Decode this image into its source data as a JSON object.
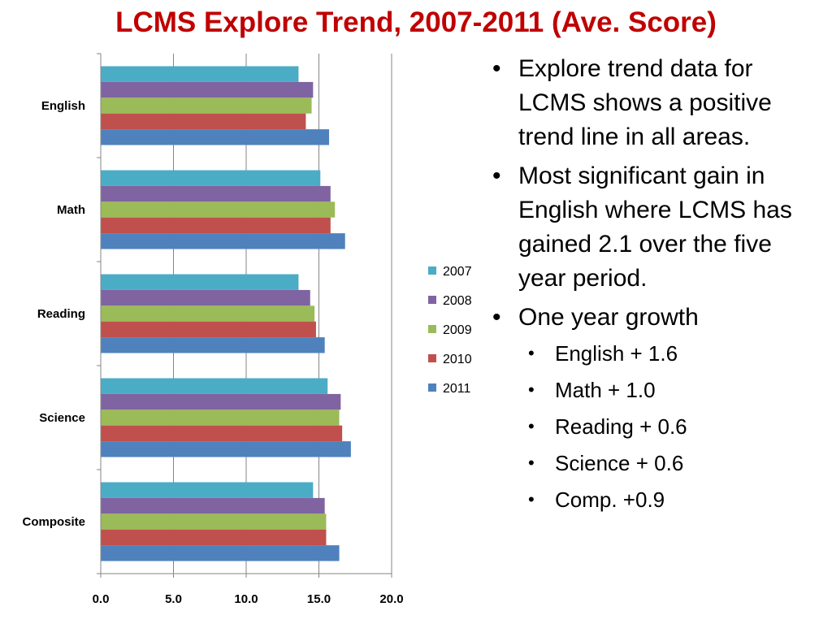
{
  "slide": {
    "title": "LCMS Explore Trend, 2007-2011 (Ave. Score)"
  },
  "bullets": [
    {
      "level": 1,
      "text": "Explore trend data for LCMS shows a positive trend line in all areas."
    },
    {
      "level": 1,
      "text": "Most significant gain in English where LCMS has gained 2.1 over the five year period."
    },
    {
      "level": 1,
      "text": "One year growth"
    },
    {
      "level": 2,
      "text": "English + 1.6"
    },
    {
      "level": 2,
      "text": "Math + 1.0"
    },
    {
      "level": 2,
      "text": "Reading + 0.6"
    },
    {
      "level": 2,
      "text": "Science + 0.6"
    },
    {
      "level": 2,
      "text": "Comp. +0.9"
    }
  ],
  "chart_data": {
    "type": "bar",
    "orientation": "horizontal",
    "title": "",
    "xlabel": "",
    "ylabel": "",
    "categories": [
      "English",
      "Math",
      "Reading",
      "Science",
      "Composite"
    ],
    "series": [
      {
        "name": "2007",
        "color": "#4bacc6",
        "values": [
          13.6,
          15.1,
          13.6,
          15.6,
          14.6
        ]
      },
      {
        "name": "2008",
        "color": "#8064a2",
        "values": [
          14.6,
          15.8,
          14.4,
          16.5,
          15.4
        ]
      },
      {
        "name": "2009",
        "color": "#9bbb59",
        "values": [
          14.5,
          16.1,
          14.7,
          16.4,
          15.5
        ]
      },
      {
        "name": "2010",
        "color": "#c0504d",
        "values": [
          14.1,
          15.8,
          14.8,
          16.6,
          15.5
        ]
      },
      {
        "name": "2011",
        "color": "#4f81bd",
        "values": [
          15.7,
          16.8,
          15.4,
          17.2,
          16.4
        ]
      }
    ],
    "xlim": [
      0,
      20
    ],
    "xticks": [
      "0.0",
      "5.0",
      "10.0",
      "15.0",
      "20.0"
    ],
    "grid": true,
    "legend": "right"
  }
}
